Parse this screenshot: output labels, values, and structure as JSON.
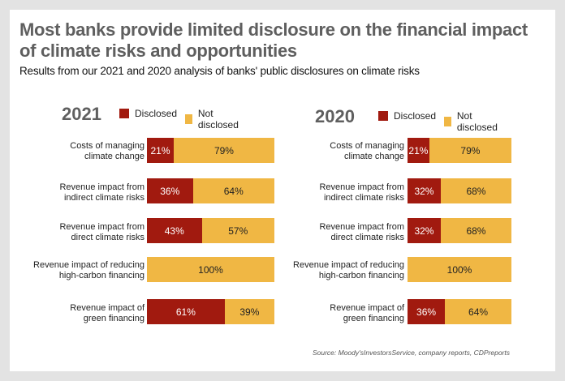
{
  "title": "Most banks provide limited disclosure on the financial impact of climate risks and opportunities",
  "subtitle": "Results from our 2021 and 2020 analysis of banks' public disclosures on climate risks",
  "source": "Source: Moody'sInvestorsService, company reports, CDPreports",
  "colors": {
    "disclosed": "#a11a0f",
    "not_disclosed": "#f0b744"
  },
  "legend": {
    "disclosed": "Disclosed",
    "not_disclosed": "Not disclosed"
  },
  "chart_data": [
    {
      "type": "bar",
      "stacked": true,
      "orientation": "horizontal",
      "title": "2021",
      "categories": [
        "Costs of managing\nclimate change",
        "Revenue impact from\nindirect climate risks",
        "Revenue impact from\ndirect climate risks",
        "Revenue impact of reducing\nhigh-carbon financing",
        "Revenue impact of\ngreen financing"
      ],
      "series": [
        {
          "name": "Disclosed",
          "values": [
            21,
            36,
            43,
            0,
            61
          ],
          "labels": [
            "21%",
            "36%",
            "43%",
            "",
            "61%"
          ]
        },
        {
          "name": "Not disclosed",
          "values": [
            79,
            64,
            57,
            100,
            39
          ],
          "labels": [
            "79%",
            "64%",
            "57%",
            "100%",
            "39%"
          ]
        }
      ],
      "xlim": [
        0,
        100
      ],
      "legend_position": "top"
    },
    {
      "type": "bar",
      "stacked": true,
      "orientation": "horizontal",
      "title": "2020",
      "categories": [
        "Costs of managing\nclimate change",
        "Revenue impact from\nindirect climate risks",
        "Revenue impact from\ndirect climate risks",
        "Revenue impact of reducing\nhigh-carbon financing",
        "Revenue impact of\ngreen financing"
      ],
      "series": [
        {
          "name": "Disclosed",
          "values": [
            21,
            32,
            32,
            0,
            36
          ],
          "labels": [
            "21%",
            "32%",
            "32%",
            "",
            "36%"
          ]
        },
        {
          "name": "Not disclosed",
          "values": [
            79,
            68,
            68,
            100,
            64
          ],
          "labels": [
            "79%",
            "68%",
            "68%",
            "100%",
            "64%"
          ]
        }
      ],
      "xlim": [
        0,
        100
      ],
      "legend_position": "top"
    }
  ]
}
